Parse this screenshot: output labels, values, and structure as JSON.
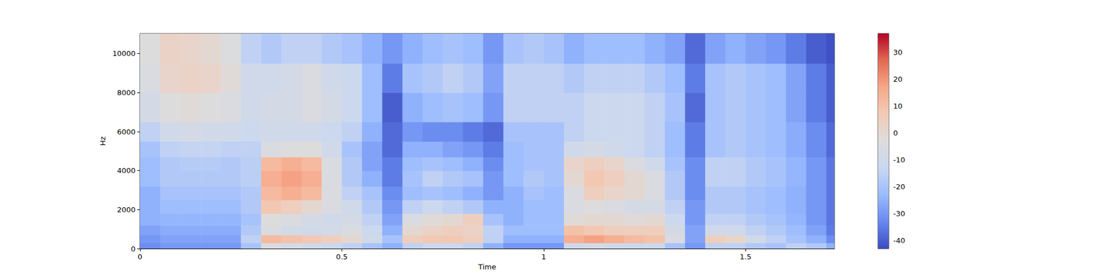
{
  "chart_data": {
    "type": "heatmap",
    "xlabel": "Time",
    "ylabel": "Hz",
    "xlim": [
      0,
      1.72
    ],
    "xticks": [
      0,
      0.5,
      1,
      1.5
    ],
    "ylim": [
      0,
      11025
    ],
    "yticks": [
      0,
      2000,
      4000,
      6000,
      8000,
      10000
    ],
    "x_edges": [
      0,
      0.05,
      0.1,
      0.15,
      0.2,
      0.25,
      0.3,
      0.35,
      0.4,
      0.45,
      0.5,
      0.55,
      0.6,
      0.65,
      0.7,
      0.75,
      0.8,
      0.85,
      0.9,
      0.95,
      1.0,
      1.05,
      1.1,
      1.15,
      1.2,
      1.25,
      1.3,
      1.35,
      1.4,
      1.45,
      1.5,
      1.55,
      1.6,
      1.65,
      1.7,
      1.72
    ],
    "y_edges": [
      0,
      300,
      700,
      1200,
      1800,
      2500,
      3200,
      4000,
      4700,
      5500,
      6500,
      8000,
      9500,
      11025
    ],
    "cells": [
      [
        -32,
        -30,
        -28,
        -25,
        -25,
        -25,
        -22,
        -22,
        -20,
        -15,
        -8,
        -5,
        -3
      ],
      [
        -30,
        -28,
        -26,
        -24,
        -22,
        -20,
        -18,
        -18,
        -15,
        -10,
        -3,
        2,
        3
      ],
      [
        -30,
        -28,
        -26,
        -24,
        -22,
        -20,
        -18,
        -17,
        -14,
        -8,
        -2,
        3,
        2
      ],
      [
        -30,
        -28,
        -26,
        -24,
        -22,
        -20,
        -18,
        -17,
        -14,
        -9,
        -3,
        2,
        0
      ],
      [
        -30,
        -28,
        -26,
        -24,
        -22,
        -20,
        -18,
        -18,
        -15,
        -10,
        -5,
        -2,
        -4
      ],
      [
        -20,
        -15,
        -18,
        -20,
        -18,
        -18,
        -16,
        -16,
        -15,
        -12,
        -10,
        -10,
        -15
      ],
      [
        -5,
        12,
        -5,
        -3,
        8,
        12,
        15,
        12,
        -5,
        -10,
        -8,
        -10,
        -18
      ],
      [
        -8,
        10,
        -8,
        -5,
        5,
        15,
        18,
        15,
        -3,
        -10,
        -8,
        -8,
        -15
      ],
      [
        -10,
        8,
        -10,
        -8,
        0,
        12,
        15,
        12,
        -3,
        -10,
        -5,
        -5,
        -15
      ],
      [
        -12,
        5,
        -8,
        -10,
        -5,
        -5,
        -5,
        -5,
        -10,
        -12,
        -8,
        -10,
        -18
      ],
      [
        -15,
        0,
        -5,
        -8,
        -10,
        -15,
        -18,
        -18,
        -20,
        -15,
        -12,
        -12,
        -20
      ],
      [
        -20,
        -10,
        -12,
        -15,
        -18,
        -20,
        -25,
        -28,
        -28,
        -25,
        -22,
        -22,
        -25
      ],
      [
        -25,
        -20,
        -25,
        -28,
        -30,
        -32,
        -35,
        -35,
        -38,
        -38,
        -40,
        -35,
        -30
      ],
      [
        -15,
        5,
        0,
        -5,
        -15,
        -22,
        -20,
        -22,
        -25,
        -30,
        -25,
        -20,
        -25
      ],
      [
        -12,
        8,
        3,
        -2,
        -12,
        -20,
        -15,
        -20,
        -25,
        -32,
        -22,
        -18,
        -22
      ],
      [
        -12,
        8,
        5,
        0,
        -15,
        -22,
        -18,
        -22,
        -28,
        -32,
        -20,
        -15,
        -20
      ],
      [
        -15,
        5,
        3,
        5,
        -18,
        -25,
        -20,
        -25,
        -30,
        -35,
        -22,
        -18,
        -22
      ],
      [
        -25,
        -15,
        -15,
        -20,
        -25,
        -30,
        -30,
        -32,
        -35,
        -38,
        -30,
        -28,
        -30
      ],
      [
        -30,
        -25,
        -22,
        -25,
        -25,
        -25,
        -22,
        -22,
        -22,
        -20,
        -15,
        -15,
        -20
      ],
      [
        -30,
        -25,
        -22,
        -22,
        -22,
        -20,
        -18,
        -20,
        -20,
        -20,
        -15,
        -15,
        -18
      ],
      [
        -30,
        -25,
        -22,
        -22,
        -22,
        -22,
        -20,
        -20,
        -20,
        -20,
        -15,
        -15,
        -20
      ],
      [
        -10,
        15,
        10,
        -2,
        -5,
        -5,
        0,
        2,
        -10,
        -15,
        -15,
        -18,
        -25
      ],
      [
        -8,
        18,
        8,
        0,
        -3,
        5,
        8,
        5,
        -8,
        -12,
        -12,
        -15,
        -22
      ],
      [
        -10,
        15,
        5,
        0,
        -5,
        2,
        5,
        2,
        -10,
        -12,
        -12,
        -15,
        -22
      ],
      [
        -12,
        12,
        5,
        -2,
        -8,
        0,
        0,
        -5,
        -12,
        -12,
        -12,
        -15,
        -22
      ],
      [
        -12,
        10,
        5,
        0,
        -8,
        -5,
        -5,
        -10,
        -15,
        -15,
        -15,
        -18,
        -25
      ],
      [
        -20,
        -5,
        -8,
        -12,
        -15,
        -18,
        -18,
        -20,
        -22,
        -22,
        -20,
        -22,
        -28
      ],
      [
        -30,
        -28,
        -28,
        -30,
        -30,
        -32,
        -32,
        -32,
        -35,
        -35,
        -38,
        -35,
        -38
      ],
      [
        -15,
        5,
        -10,
        -15,
        -18,
        -18,
        -15,
        -15,
        -20,
        -20,
        -20,
        -20,
        -28
      ],
      [
        -15,
        2,
        -10,
        -15,
        -18,
        -18,
        -15,
        -15,
        -18,
        -18,
        -18,
        -18,
        -25
      ],
      [
        -18,
        -10,
        -15,
        -18,
        -20,
        -20,
        -18,
        -18,
        -20,
        -20,
        -20,
        -20,
        -28
      ],
      [
        -20,
        -15,
        -18,
        -20,
        -22,
        -22,
        -20,
        -20,
        -22,
        -22,
        -22,
        -22,
        -30
      ],
      [
        -15,
        -20,
        -22,
        -24,
        -25,
        -25,
        -24,
        -24,
        -26,
        -26,
        -28,
        -28,
        -35
      ],
      [
        -18,
        -25,
        -28,
        -30,
        -30,
        -30,
        -30,
        -30,
        -32,
        -32,
        -35,
        -35,
        -40
      ],
      [
        -25,
        -32,
        -35,
        -36,
        -36,
        -36,
        -36,
        -36,
        -38,
        -38,
        -40,
        -40,
        -42
      ]
    ],
    "colorbar": {
      "range": [
        -43,
        37
      ],
      "ticks": [
        -40,
        -30,
        -20,
        -10,
        0,
        10,
        20,
        30
      ]
    }
  }
}
